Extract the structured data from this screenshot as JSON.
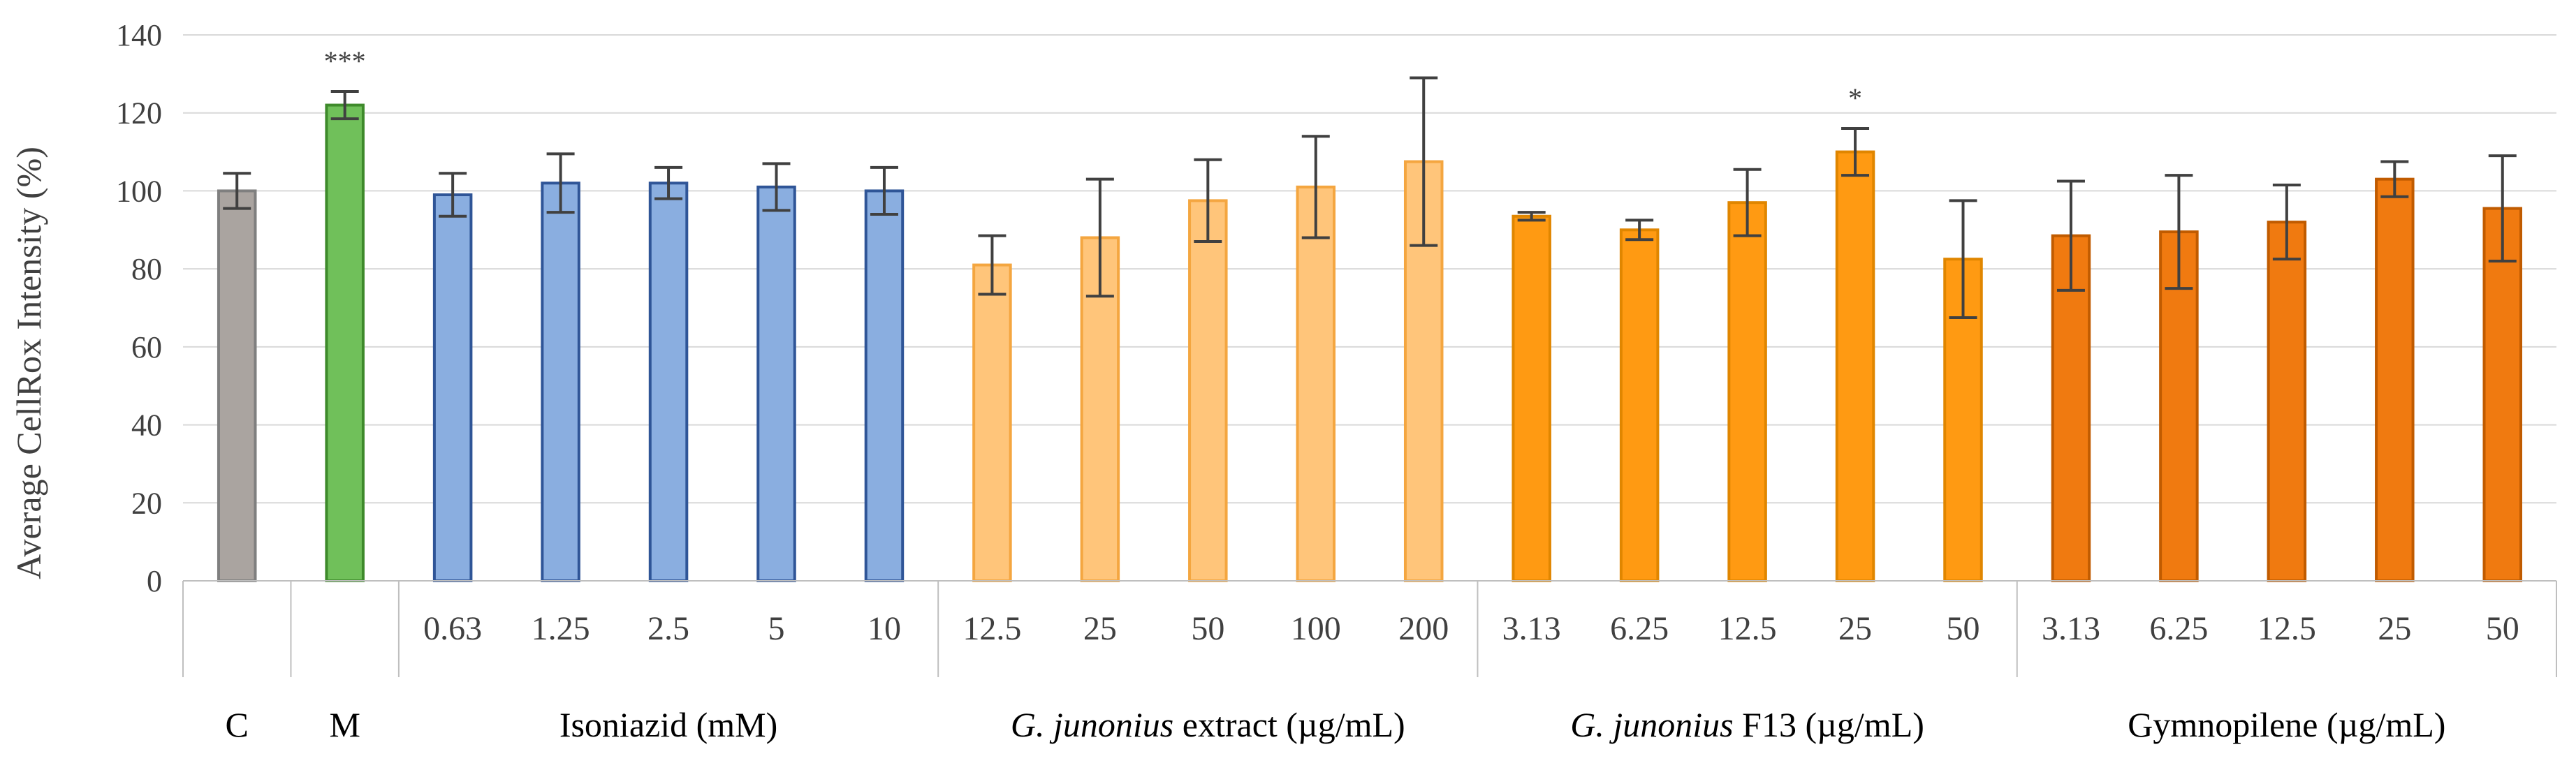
{
  "chart_data": {
    "type": "bar",
    "title": "",
    "ylabel": "Average  CellRox  Intensity  (%)",
    "ylim": [
      0,
      140
    ],
    "yticks": [
      0,
      20,
      40,
      60,
      80,
      100,
      120,
      140
    ],
    "grid": true,
    "legend": "none",
    "groups": [
      {
        "name": "C",
        "label_parts": [
          {
            "text": "C",
            "italic": false
          }
        ],
        "color": "#aaa4a0",
        "edge": "#7f7f7f",
        "bars": [
          {
            "label": "",
            "value": 100,
            "error": 4.5
          }
        ]
      },
      {
        "name": "M",
        "label_parts": [
          {
            "text": "M",
            "italic": false
          }
        ],
        "color": "#70c05a",
        "edge": "#3e8a2b",
        "bars": [
          {
            "label": "",
            "value": 122,
            "error": 3.5,
            "significance": "***"
          }
        ]
      },
      {
        "name": "Isoniazid (mM)",
        "label_parts": [
          {
            "text": "Isoniazid  (mM)",
            "italic": false
          }
        ],
        "color": "#8aaee0",
        "edge": "#2f5597",
        "bars": [
          {
            "label": "0.63",
            "value": 99,
            "error": 5.5
          },
          {
            "label": "1.25",
            "value": 102,
            "error": 7.5
          },
          {
            "label": "2.5",
            "value": 102,
            "error": 4
          },
          {
            "label": "5",
            "value": 101,
            "error": 6
          },
          {
            "label": "10",
            "value": 100,
            "error": 6
          }
        ]
      },
      {
        "name": "G. junonius extract (µg/mL)",
        "label_parts": [
          {
            "text": "G. junonius",
            "italic": true
          },
          {
            "text": " extract (µg/mL)",
            "italic": false
          }
        ],
        "color": "#ffc57a",
        "edge": "#f4a640",
        "bars": [
          {
            "label": "12.5",
            "value": 81,
            "error": 7.5
          },
          {
            "label": "25",
            "value": 88,
            "error": 15
          },
          {
            "label": "50",
            "value": 97.5,
            "error": 10.5
          },
          {
            "label": "100",
            "value": 101,
            "error": 13
          },
          {
            "label": "200",
            "value": 107.5,
            "error": 21.5
          }
        ]
      },
      {
        "name": "G. junonius F13 (µg/mL)",
        "label_parts": [
          {
            "text": "G. junonius",
            "italic": true
          },
          {
            "text": " F13 (µg/mL)",
            "italic": false
          }
        ],
        "color": "#ff9a12",
        "edge": "#e08600",
        "bars": [
          {
            "label": "3.13",
            "value": 93.5,
            "error": 1
          },
          {
            "label": "6.25",
            "value": 90,
            "error": 2.5
          },
          {
            "label": "12.5",
            "value": 97,
            "error": 8.5
          },
          {
            "label": "25",
            "value": 110,
            "error": 6,
            "significance": "*"
          },
          {
            "label": "50",
            "value": 82.5,
            "error": 15
          }
        ]
      },
      {
        "name": "Gymnopilene (µg/mL)",
        "label_parts": [
          {
            "text": "Gymnopilene  (µg/mL)",
            "italic": false
          }
        ],
        "color": "#f07a10",
        "edge": "#c05b00",
        "bars": [
          {
            "label": "3.13",
            "value": 88.5,
            "error": 14
          },
          {
            "label": "6.25",
            "value": 89.5,
            "error": 14.5
          },
          {
            "label": "12.5",
            "value": 92,
            "error": 9.5
          },
          {
            "label": "25",
            "value": 103,
            "error": 4.5
          },
          {
            "label": "50",
            "value": 95.5,
            "error": 13.5
          }
        ]
      }
    ]
  }
}
